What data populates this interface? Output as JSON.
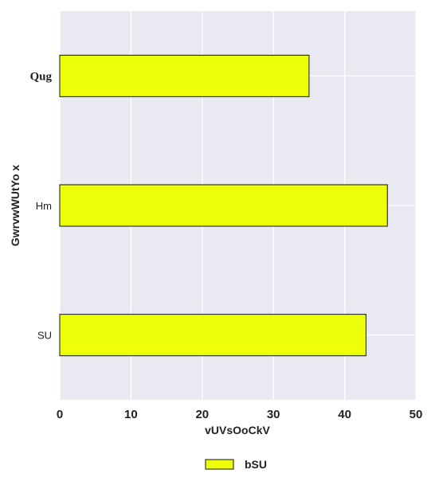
{
  "chart_data": {
    "type": "bar",
    "orientation": "horizontal",
    "categories": [
      "Qug",
      "Hm",
      "SU"
    ],
    "series": [
      {
        "name": "bSU",
        "values": [
          35,
          46,
          43
        ]
      }
    ],
    "xlabel": "vUVsOoCkV",
    "ylabel": "GwrvwWUtYo x",
    "xlim": [
      0,
      50
    ],
    "xticks": [
      "0",
      "10",
      "20",
      "30",
      "40",
      "50"
    ],
    "grid": true,
    "legend": "bottom-center"
  },
  "colors": {
    "plot_background": "#e8e9f1",
    "grid": "#ffffff",
    "bar_fill": "#eeff0a",
    "bar_edge": "#111111"
  }
}
